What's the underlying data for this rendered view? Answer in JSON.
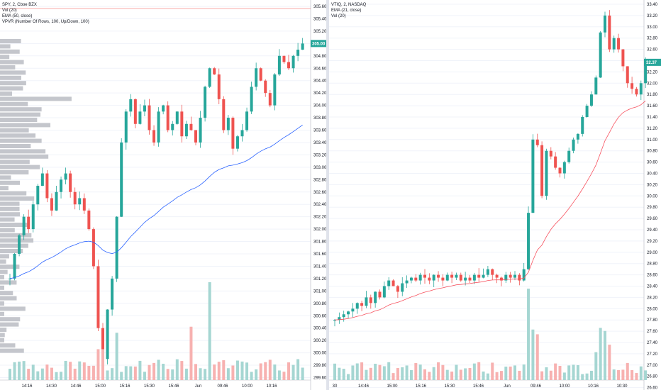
{
  "left": {
    "legend": [
      "SPY, 2, Cboe BZX",
      "Vol (20)",
      "EMA (50, close)",
      "VPVR (Number Of Rows, 100, Up/Down, 100)"
    ],
    "price_ticks": [
      "305.60",
      "305.40",
      "305.20",
      "305.00",
      "304.80",
      "304.60",
      "304.40",
      "304.20",
      "304.00",
      "303.80",
      "303.60",
      "303.40",
      "303.20",
      "303.00",
      "302.80",
      "302.60",
      "302.40",
      "302.20",
      "302.00",
      "301.80",
      "301.60",
      "301.40",
      "301.20",
      "301.00",
      "300.80",
      "300.60",
      "300.40",
      "300.20",
      "300.00",
      "299.80",
      "299.60"
    ],
    "last_price": "305.00",
    "time_ticks": [
      "14:16",
      "14:30",
      "14:46",
      "15:00",
      "15:16",
      "15:30",
      "15:46",
      "Jun",
      "09:46",
      "10:00",
      "10:16"
    ],
    "colors": {
      "up": "#26a69a",
      "down": "#ef5350",
      "ema": "#2962ff",
      "vpvr": "#b2b5be"
    }
  },
  "right": {
    "legend": [
      "VTIQ, 2, NASDAQ",
      "EMA (21, close)",
      "Vol (20)"
    ],
    "price_ticks": [
      "33.40",
      "33.20",
      "33.00",
      "32.80",
      "32.60",
      "32.40",
      "32.20",
      "32.00",
      "31.80",
      "31.60",
      "31.40",
      "31.20",
      "31.00",
      "30.80",
      "30.60",
      "30.40",
      "30.20",
      "30.00",
      "29.80",
      "29.60",
      "29.40",
      "29.20",
      "29.00",
      "28.80",
      "28.60",
      "28.40",
      "28.20",
      "28.00",
      "27.80",
      "27.60",
      "27.40",
      "27.20",
      "27.00",
      "26.80",
      "26.60"
    ],
    "last_price": "32.37",
    "time_ticks": [
      "30",
      "14:46",
      "15:00",
      "15:16",
      "15:30",
      "15:46",
      "Jun",
      "09:46",
      "10:00",
      "10:16",
      "10:30"
    ],
    "colors": {
      "up": "#26a69a",
      "down": "#ef5350",
      "ema": "#f7525f"
    }
  }
}
